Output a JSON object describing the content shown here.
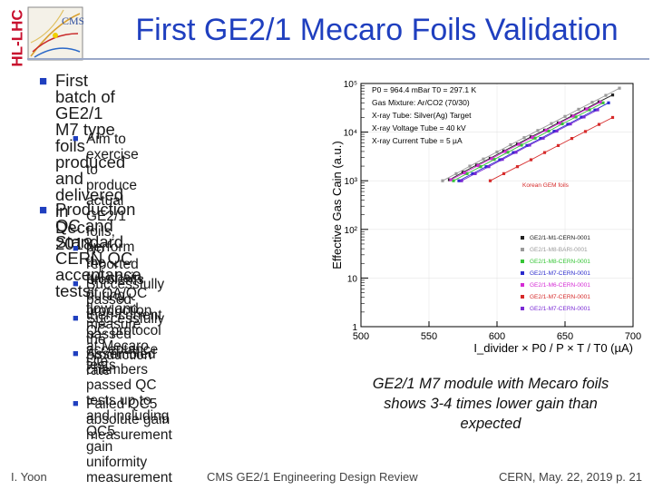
{
  "logo": {
    "hl_lhc": "HL-LHC",
    "cms": "CMS"
  },
  "title": "First GE2/1 Mecaro Foils Validation",
  "bullets": [
    {
      "lines": [
        "First batch of GE2/1 M7 type",
        "foils produced and delivered in",
        "Dec. 2018"
      ],
      "subs": [
        [
          "Aim to exercise to produce",
          "actual GE2/1 foils, perform the",
          "full chain of QA/QC flow and",
          "measure the production rate"
        ]
      ]
    },
    {
      "lines": [
        "Production QC and Standard",
        "CERN QC acceptance tests:"
      ],
      "subs": [
        [
          "No reported problems during",
          "production"
        ],
        [
          "Successfully passed then-current",
          "QC protocol at Mecaro site"
        ],
        [
          "Successfully passed acceptance",
          "tests"
        ],
        [
          "Assembled chambers passed QC",
          "tests up to and including QC5",
          "gain uniformity measurement"
        ],
        [
          "Failed QC5 absolute gain",
          "measurement"
        ]
      ]
    }
  ],
  "chart_data": {
    "type": "scatter",
    "ylabel": "Effective Gas Cain (a.u.)",
    "xlabel": "I_divider × P0 / P × T / T0 (µA)",
    "xlim": [
      500,
      700
    ],
    "ylim_log10": [
      0,
      5
    ],
    "log_y": true,
    "x_ticks": [
      500,
      550,
      600,
      650,
      700
    ],
    "y_tick_labels": [
      "1",
      "10",
      "10²",
      "10³",
      "10⁴",
      "10⁵"
    ],
    "info_lines": [
      "P0 = 964.4 mBar T0 = 297.1 K",
      "Gas Mixture: Ar/CO2 (70/30)",
      "X-ray Tube: Silver(Ag) Target",
      "X-ray Voltage Tube = 40 kV",
      "X-ray Current Tube = 5 µA"
    ],
    "annotation": "Korean GEM foils",
    "series": [
      {
        "name": "GE2/1-M1-CERN-0001",
        "color": "#222222",
        "x": [
          565,
          575,
          585,
          595,
          605,
          615,
          625,
          635,
          645,
          655,
          665,
          675,
          685
        ],
        "y": [
          1050,
          1500,
          2100,
          2900,
          4100,
          5700,
          8000,
          11000,
          15500,
          21500,
          30000,
          42000,
          58000
        ]
      },
      {
        "name": "GE2/1-M8-BARI-0001",
        "color": "#9a9a9a",
        "x": [
          560,
          570,
          580,
          590,
          600,
          610,
          620,
          630,
          640,
          650,
          660,
          670,
          680,
          690
        ],
        "y": [
          1000,
          1400,
          2000,
          2800,
          3900,
          5500,
          7700,
          10800,
          15000,
          21000,
          29500,
          41000,
          57000,
          80000
        ]
      },
      {
        "name": "GE2/1-M8-CERN-0001",
        "color": "#35c535",
        "x": [
          568,
          578,
          588,
          598,
          608,
          618,
          628,
          638,
          648,
          658,
          668,
          678
        ],
        "y": [
          1000,
          1400,
          1950,
          2750,
          3850,
          5400,
          7500,
          10500,
          14800,
          20500,
          28800,
          40000
        ]
      },
      {
        "name": "GE2/1-M7-CERN-0001",
        "color": "#2a2acc",
        "x": [
          572,
          582,
          592,
          602,
          612,
          622,
          632,
          642,
          652,
          662,
          672,
          682
        ],
        "y": [
          1000,
          1400,
          1950,
          2700,
          3800,
          5300,
          7400,
          10400,
          14500,
          20300,
          28500,
          40000
        ]
      },
      {
        "name": "GE2/1-M6-CERN-0001",
        "color": "#d52bd5",
        "x": [
          566,
          576,
          586,
          596,
          606,
          616,
          626,
          636,
          646,
          656,
          666,
          676
        ],
        "y": [
          1050,
          1450,
          2050,
          2850,
          4000,
          5600,
          7800,
          10900,
          15300,
          21300,
          29800,
          41500
        ]
      },
      {
        "name": "GE2/1-M7-CERN-0001",
        "color": "#d62a2a",
        "x": [
          595,
          605,
          615,
          625,
          635,
          645,
          655,
          665,
          675,
          685
        ],
        "y": [
          1000,
          1400,
          1950,
          2700,
          3800,
          5300,
          7400,
          10300,
          14400,
          20000
        ]
      },
      {
        "name": "GE2/1-M7-CERN-0001",
        "color": "#7a2ad5",
        "x": [
          574,
          584,
          594,
          604,
          614,
          624,
          634,
          644,
          654,
          664,
          674
        ],
        "y": [
          1000,
          1400,
          1950,
          2750,
          3850,
          5400,
          7500,
          10500,
          14700,
          20500,
          28700
        ]
      }
    ]
  },
  "caption": [
    "GE2/1 M7 module with Mecaro foils",
    "shows 3-4 times lower gain than",
    "expected"
  ],
  "footer": {
    "left": "I. Yoon",
    "center": "CMS GE2/1 Engineering Design Review",
    "right": "CERN, May. 22, 2019   p. 21"
  }
}
